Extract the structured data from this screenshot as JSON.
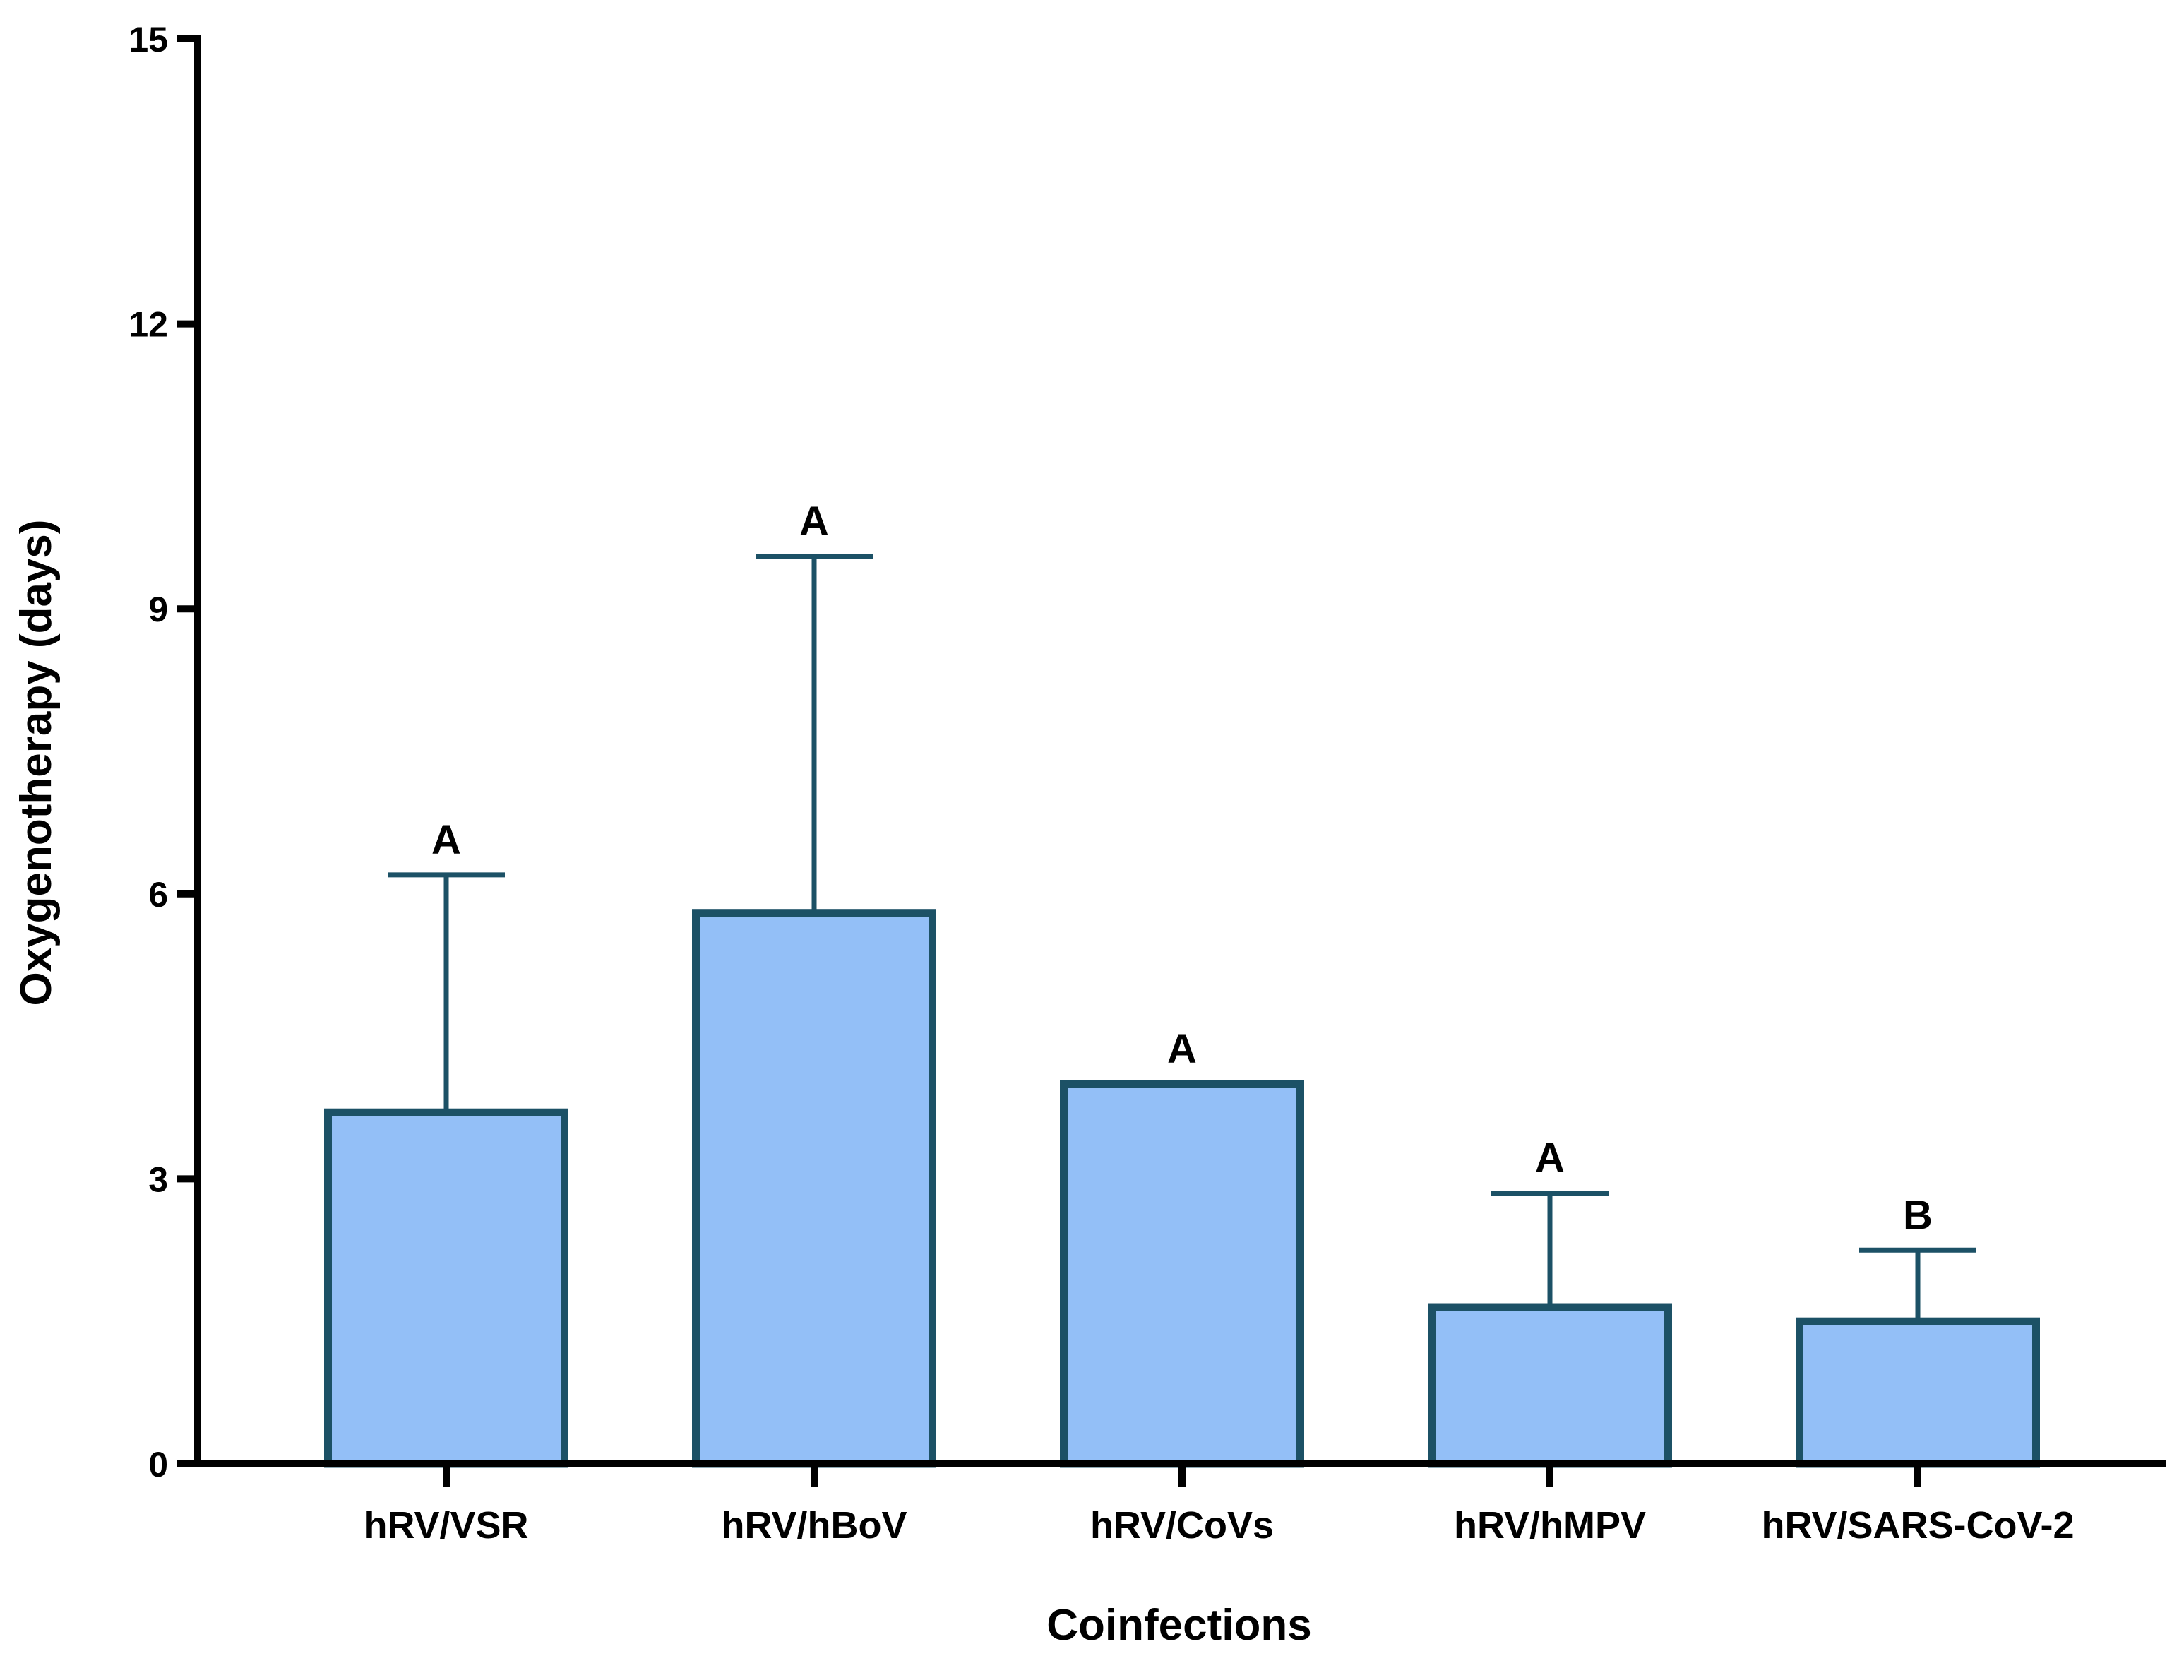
{
  "chart_data": {
    "type": "bar",
    "title": "",
    "xlabel": "Coinfections",
    "ylabel": "Oxygenotherapy (days)",
    "ylim": [
      0,
      15
    ],
    "yticks": [
      0,
      3,
      6,
      9,
      12,
      15
    ],
    "grid": false,
    "categories": [
      "hRV/VSR",
      "hRV/hBoV",
      "hRV/CoVs",
      "hRV/hMPV",
      "hRV/SARS-CoV-2"
    ],
    "values": [
      3.7,
      5.8,
      4.0,
      1.65,
      1.5
    ],
    "error_upper": [
      6.2,
      9.55,
      4.0,
      2.85,
      2.25
    ],
    "significance_labels": [
      "A",
      "A",
      "A",
      "A",
      "B"
    ],
    "colors": {
      "bar_fill": "#93bff7",
      "bar_edge": "#1c5166",
      "axis": "#000000"
    }
  }
}
